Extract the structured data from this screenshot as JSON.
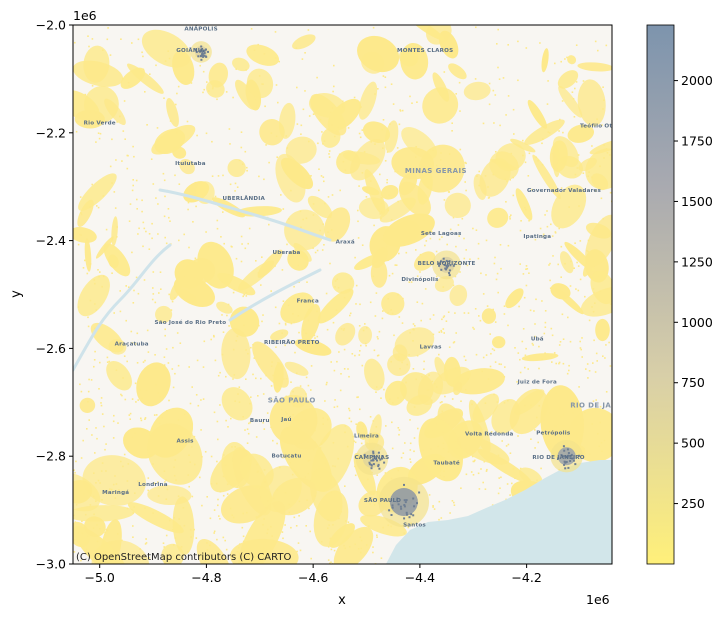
{
  "chart_data": {
    "type": "heatmap",
    "x_axis": {
      "label": "x",
      "offset_label": "1e6",
      "range": [
        -5.05,
        -4.04
      ],
      "ticks": [
        -5.0,
        -4.8,
        -4.6,
        -4.4,
        -4.2
      ],
      "tick_labels": [
        "−5.0",
        "−4.8",
        "−4.6",
        "−4.4",
        "−4.2"
      ]
    },
    "y_axis": {
      "label": "y",
      "offset_label": "1e6",
      "range": [
        -3.0,
        -2.0
      ],
      "ticks": [
        -2.0,
        -2.2,
        -2.4,
        -2.6,
        -2.8,
        -3.0
      ],
      "tick_labels": [
        "−2.0",
        "−2.2",
        "−2.4",
        "−2.6",
        "−2.8",
        "−3.0"
      ]
    },
    "colorbar": {
      "range": [
        0,
        2230
      ],
      "ticks": [
        250,
        500,
        750,
        1000,
        1250,
        1500,
        1750,
        2000
      ],
      "tick_labels": [
        "250",
        "500",
        "750",
        "1000",
        "1250",
        "1500",
        "1750",
        "2000"
      ],
      "colors": [
        "#fff07a",
        "#d8cfa8",
        "#8898aa",
        "#7d94ad"
      ]
    },
    "attribution": "(C) OpenStreetMap contributors (C) CARTO",
    "ocean_color": "#d2e6ea",
    "land_color": "#f8f6f2",
    "overlay_color": "#fde98a",
    "grid": false
  },
  "map_labels": [
    {
      "text": "ANÁPOLIS",
      "x": -4.81,
      "y": -2.01,
      "kind": "place"
    },
    {
      "text": "GOIÂNIA",
      "x": -4.83,
      "y": -2.05,
      "kind": "place"
    },
    {
      "text": "MONTES CLAROS",
      "x": -4.39,
      "y": -2.05,
      "kind": "place"
    },
    {
      "text": "Rio Verde",
      "x": -5.0,
      "y": -2.185,
      "kind": "place"
    },
    {
      "text": "Teófilo Otoni",
      "x": -4.06,
      "y": -2.19,
      "kind": "place"
    },
    {
      "text": "Ituiutaba",
      "x": -4.83,
      "y": -2.26,
      "kind": "place"
    },
    {
      "text": "MINAS GERAIS",
      "x": -4.37,
      "y": -2.275,
      "kind": "region"
    },
    {
      "text": "UBERLÂNDIA",
      "x": -4.73,
      "y": -2.325,
      "kind": "place"
    },
    {
      "text": "Governador Valadares",
      "x": -4.13,
      "y": -2.31,
      "kind": "place"
    },
    {
      "text": "Sete Lagoas",
      "x": -4.36,
      "y": -2.39,
      "kind": "place"
    },
    {
      "text": "Ipatinga",
      "x": -4.18,
      "y": -2.395,
      "kind": "place"
    },
    {
      "text": "Araxá",
      "x": -4.54,
      "y": -2.405,
      "kind": "place"
    },
    {
      "text": "Uberaba",
      "x": -4.65,
      "y": -2.425,
      "kind": "place"
    },
    {
      "text": "BELO HORIZONTE",
      "x": -4.35,
      "y": -2.445,
      "kind": "place"
    },
    {
      "text": "Divinópolis",
      "x": -4.4,
      "y": -2.475,
      "kind": "place"
    },
    {
      "text": "Franca",
      "x": -4.61,
      "y": -2.515,
      "kind": "place"
    },
    {
      "text": "São José do Rio Preto",
      "x": -4.83,
      "y": -2.555,
      "kind": "place"
    },
    {
      "text": "Ubá",
      "x": -4.18,
      "y": -2.585,
      "kind": "place"
    },
    {
      "text": "Araçatuba",
      "x": -4.94,
      "y": -2.595,
      "kind": "place"
    },
    {
      "text": "RIBEIRÃO PRETO",
      "x": -4.64,
      "y": -2.592,
      "kind": "place"
    },
    {
      "text": "Lavras",
      "x": -4.38,
      "y": -2.6,
      "kind": "place"
    },
    {
      "text": "Juiz de Fora",
      "x": -4.18,
      "y": -2.665,
      "kind": "place"
    },
    {
      "text": "SÃO PAULO",
      "x": -4.64,
      "y": -2.7,
      "kind": "region"
    },
    {
      "text": "RIO DE JANEIRO",
      "x": -4.055,
      "y": -2.71,
      "kind": "region"
    },
    {
      "text": "Bauru",
      "x": -4.7,
      "y": -2.737,
      "kind": "place"
    },
    {
      "text": "Jaú",
      "x": -4.65,
      "y": -2.735,
      "kind": "place"
    },
    {
      "text": "Limeira",
      "x": -4.5,
      "y": -2.765,
      "kind": "place"
    },
    {
      "text": "Volta Redonda",
      "x": -4.27,
      "y": -2.762,
      "kind": "place"
    },
    {
      "text": "Petrópolis",
      "x": -4.15,
      "y": -2.76,
      "kind": "place"
    },
    {
      "text": "Assis",
      "x": -4.84,
      "y": -2.775,
      "kind": "place"
    },
    {
      "text": "Botucatu",
      "x": -4.65,
      "y": -2.802,
      "kind": "place"
    },
    {
      "text": "CAMPINAS",
      "x": -4.49,
      "y": -2.805,
      "kind": "place"
    },
    {
      "text": "RIO DE JANEIRO",
      "x": -4.14,
      "y": -2.805,
      "kind": "place"
    },
    {
      "text": "Taubaté",
      "x": -4.35,
      "y": -2.815,
      "kind": "place"
    },
    {
      "text": "Londrina",
      "x": -4.9,
      "y": -2.855,
      "kind": "place"
    },
    {
      "text": "Maringá",
      "x": -4.97,
      "y": -2.87,
      "kind": "place"
    },
    {
      "text": "SÃO PAULO",
      "x": -4.47,
      "y": -2.885,
      "kind": "place"
    },
    {
      "text": "Santos",
      "x": -4.41,
      "y": -2.93,
      "kind": "place"
    }
  ]
}
